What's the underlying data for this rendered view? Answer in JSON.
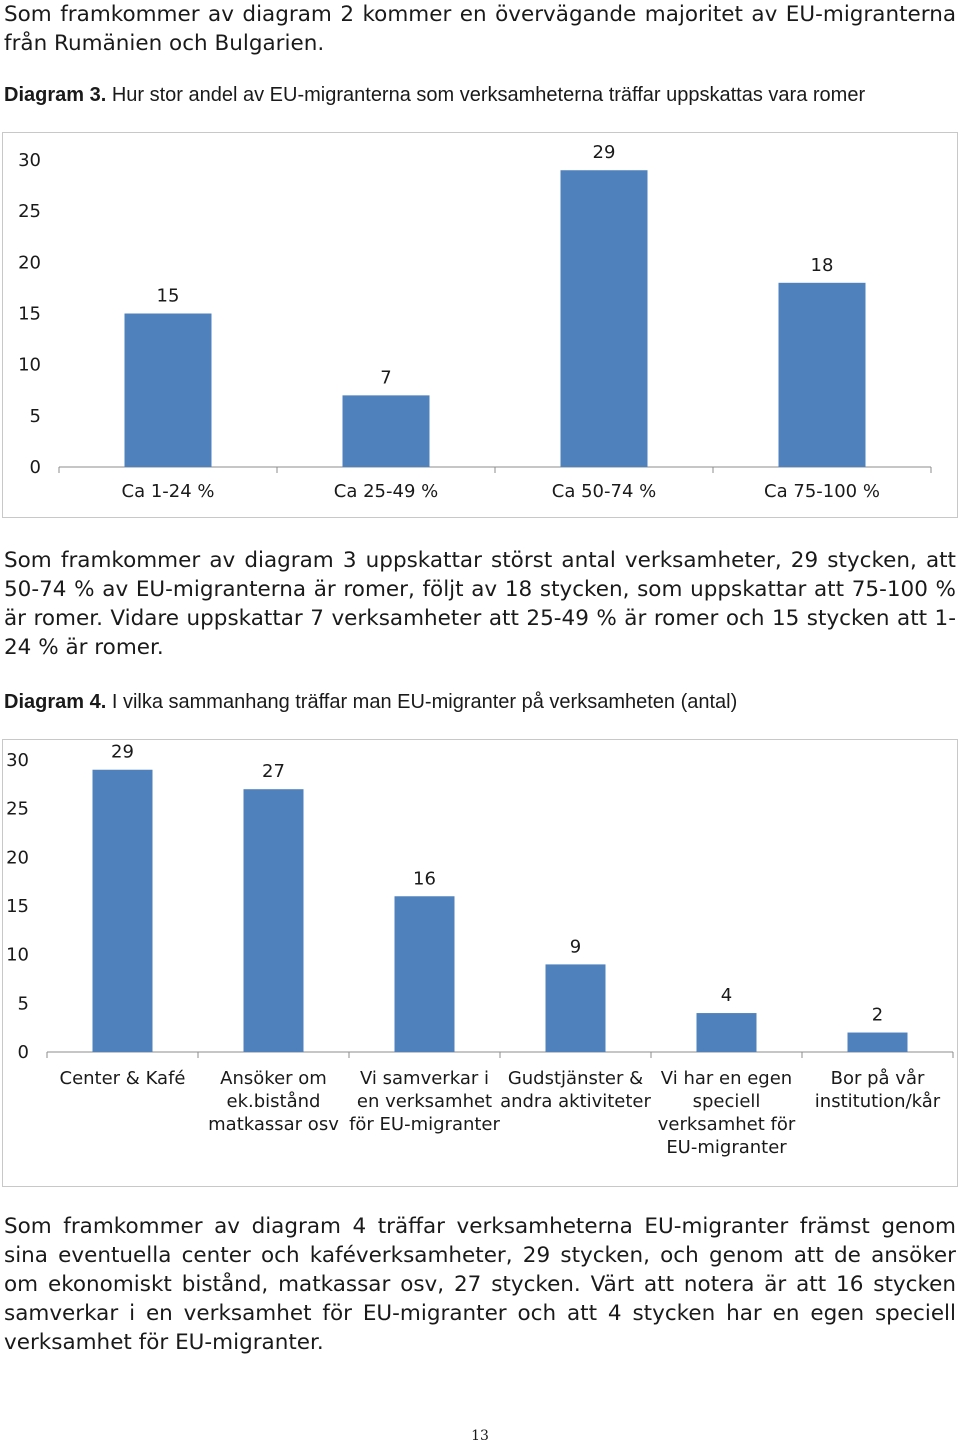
{
  "intro_text": "Som framkommer av diagram 2 kommer en övervägande majoritet av EU-migranterna från Rumänien och Bulgarien.",
  "diagram3": {
    "caption_number": "Diagram 3.",
    "caption_title": "Hur stor andel av EU-migranterna som verksamheterna träffar uppskattas vara romer"
  },
  "text_after_diagram3": "Som framkommer av diagram 3 uppskattar störst antal verksamheter, 29 stycken, att 50-74 % av EU-migranterna är romer, följt av 18 stycken, som uppskattar att 75-100 % är romer. Vidare uppskattar 7 verksamheter att 25-49 % är romer och 15 stycken att 1-24 % är romer.",
  "diagram4": {
    "caption_number": "Diagram 4.",
    "caption_title": "I vilka sammanhang träffar man EU-migranter på verksamheten (antal)"
  },
  "text_after_diagram4": "Som framkommer av diagram 4 träffar verksamheterna EU-migranter främst genom sina eventuella center och kaféverksamheter, 29 stycken, och genom att de ansöker om ekonomiskt bistånd, matkassar osv, 27 stycken. Värt att notera är att 16 stycken samverkar i en verksamhet för EU-migranter och att 4 stycken har en egen speciell verksamhet för EU-migranter.",
  "page_number": "13",
  "chart_data": [
    {
      "type": "bar",
      "categories": [
        "Ca 1-24 %",
        "Ca 25-49 %",
        "Ca 50-74 %",
        "Ca 75-100 %"
      ],
      "values": [
        15,
        7,
        29,
        18
      ],
      "ylim": [
        0,
        30
      ],
      "yticks": [
        0,
        5,
        10,
        15,
        20,
        25,
        30
      ],
      "grid": false,
      "legend": "none",
      "bar_color": "#4f81bd",
      "data_labels": true
    },
    {
      "type": "bar",
      "categories": [
        [
          "Center & Kafé"
        ],
        [
          "Ansöker om",
          "ek.bistånd",
          "matkassar osv"
        ],
        [
          "Vi samverkar i",
          "en verksamhet",
          "för EU-migranter"
        ],
        [
          "Gudstjänster &",
          "andra aktiviteter"
        ],
        [
          "Vi har en egen",
          "speciell",
          "verksamhet för",
          "EU-migranter"
        ],
        [
          "Bor på vår",
          "institution/kår"
        ]
      ],
      "values": [
        29,
        27,
        16,
        9,
        4,
        2
      ],
      "ylim": [
        0,
        30
      ],
      "yticks": [
        0,
        5,
        10,
        15,
        20,
        25,
        30
      ],
      "grid": false,
      "legend": "none",
      "bar_color": "#4f81bd",
      "data_labels": true
    }
  ]
}
